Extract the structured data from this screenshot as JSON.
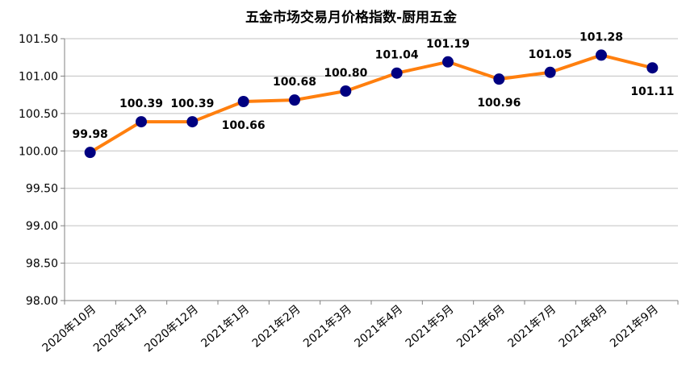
{
  "chart_data": {
    "type": "line",
    "title": "五金市场交易月价格指数-厨用五金",
    "xlabel": "",
    "ylabel": "",
    "categories": [
      "2020年10月",
      "2020年11月",
      "2020年12月",
      "2021年1月",
      "2021年2月",
      "2021年3月",
      "2021年4月",
      "2021年5月",
      "2021年6月",
      "2021年7月",
      "2021年8月",
      "2021年9月"
    ],
    "series": [
      {
        "values": [
          99.98,
          100.39,
          100.39,
          100.66,
          100.68,
          100.8,
          101.04,
          101.19,
          100.96,
          101.05,
          101.28,
          101.11
        ],
        "labels": [
          "99.98",
          "100.39",
          "100.39",
          "100.66",
          "100.68",
          "100.80",
          "101.04",
          "101.19",
          "100.96",
          "101.05",
          "101.28",
          "101.11"
        ]
      }
    ],
    "ylim": [
      98.0,
      101.5
    ],
    "yticks": [
      "98.00",
      "98.50",
      "99.00",
      "99.50",
      "100.00",
      "100.50",
      "101.00",
      "101.50"
    ],
    "grid": true,
    "legend": "none",
    "colors": {
      "line": "#ff7f0e",
      "marker": "#000080",
      "grid": "#c0c0c0",
      "axis": "#808080"
    }
  }
}
